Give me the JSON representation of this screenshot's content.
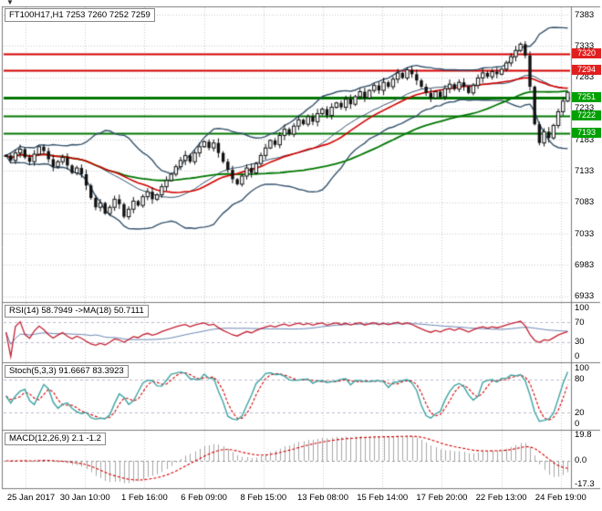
{
  "colors": {
    "background": "#ffffff",
    "grid": "#c8c8c8",
    "panel_border": "#7a7a7a",
    "candle": "#111111",
    "bollinger": "#35536d",
    "ma_fast": "#d40000",
    "ma_slow": "#007600",
    "badge_red": "#e01f1f",
    "badge_green": "#00a000",
    "rsi_line": "#c22033",
    "rsi_ma": "#6b86b5",
    "stoch_main": "#3da3a3",
    "stoch_signal": "#d40000",
    "macd_hist": "#a6a6a6",
    "macd_signal": "#d40000",
    "sub_level": "#b9b9cf",
    "axis_text": "#000000"
  },
  "icons": {
    "chart_menu": "▼"
  },
  "main_chart": {
    "header": "FT100H17,H1 7253 7260 7252 7259"
  },
  "panels": {
    "rsi": {
      "header": "RSI(14) 58.7949 ->MA(18) 50.7111",
      "axis_labels": [
        "100",
        "70",
        "30",
        "0"
      ]
    },
    "stoch": {
      "header": "Stoch(5,3,3) 91.6667 83.3923",
      "axis_labels": [
        "100",
        "80",
        "20",
        "0"
      ]
    },
    "macd": {
      "header": "MACD(12,26,9) 2.1 -1.2",
      "axis_labels": [
        "19.8",
        "0.0",
        "-17.3"
      ]
    }
  },
  "time_axis": {
    "labels": [
      "25 Jan 2017",
      "30 Jan 10:00",
      "1 Feb 16:00",
      "6 Feb 09:00",
      "8 Feb 15:00",
      "13 Feb 08:00",
      "15 Feb 14:00",
      "17 Feb 20:00",
      "22 Feb 13:00",
      "24 Feb 19:00"
    ]
  },
  "chart_data": {
    "type": "candlestick",
    "title": "FT100H17,H1",
    "symbol": "FT100H17",
    "timeframe": "H1",
    "quote": {
      "open": 7253,
      "high": 7260,
      "low": 7252,
      "close": 7259
    },
    "price_range": [
      6925,
      7395
    ],
    "price_ticks": [
      7383,
      7333,
      7283,
      7233,
      7183,
      7133,
      7083,
      7033,
      6983,
      6933
    ],
    "levels": [
      {
        "label": "7320",
        "price": 7320,
        "kind": "resistance",
        "line": "#d40000",
        "badge": "#e01f1f",
        "width": 2
      },
      {
        "label": "7294",
        "price": 7294,
        "kind": "resistance",
        "line": "#d40000",
        "badge": "#e01f1f",
        "width": 2
      },
      {
        "label": "7251",
        "price": 7251,
        "kind": "support",
        "line": "#007600",
        "badge": "#00a000",
        "width": 3
      },
      {
        "label": "7222",
        "price": 7222,
        "kind": "support",
        "line": "#007600",
        "badge": "#00a000",
        "width": 2
      },
      {
        "label": "7193",
        "price": 7193,
        "kind": "support",
        "line": "#007600",
        "badge": "#00a000",
        "width": 2
      }
    ],
    "closes": [
      7158,
      7150,
      7162,
      7168,
      7155,
      7148,
      7160,
      7172,
      7165,
      7152,
      7140,
      7148,
      7155,
      7142,
      7130,
      7138,
      7128,
      7110,
      7090,
      7075,
      7082,
      7065,
      7075,
      7088,
      7080,
      7060,
      7072,
      7085,
      7078,
      7092,
      7100,
      7088,
      7095,
      7108,
      7118,
      7128,
      7140,
      7150,
      7158,
      7148,
      7162,
      7172,
      7180,
      7170,
      7178,
      7162,
      7148,
      7135,
      7120,
      7112,
      7125,
      7138,
      7130,
      7145,
      7158,
      7170,
      7182,
      7175,
      7190,
      7200,
      7192,
      7205,
      7215,
      7208,
      7220,
      7212,
      7225,
      7232,
      7222,
      7235,
      7242,
      7235,
      7248,
      7240,
      7252,
      7260,
      7250,
      7262,
      7270,
      7262,
      7275,
      7268,
      7280,
      7290,
      7282,
      7295,
      7288,
      7278,
      7268,
      7258,
      7250,
      7260,
      7252,
      7265,
      7272,
      7264,
      7275,
      7268,
      7258,
      7270,
      7282,
      7290,
      7284,
      7292,
      7288,
      7296,
      7306,
      7316,
      7326,
      7336,
      7318,
      7268,
      7208,
      7178,
      7196,
      7186,
      7206,
      7228,
      7245,
      7259
    ],
    "indicators": {
      "bollinger": {
        "period": 20,
        "deviation": 2
      },
      "ma_fast_period": 24,
      "ma_slow_period": 55,
      "rsi": {
        "period": 14,
        "ma_period": 18,
        "value": 58.7949,
        "ma_value": 50.7111,
        "levels": [
          70,
          30
        ],
        "range": [
          0,
          100
        ]
      },
      "stochastic": {
        "k": 5,
        "slowing": 3,
        "d": 3,
        "value": 91.6667,
        "signal": 83.3923,
        "levels": [
          80,
          20
        ],
        "range": [
          0,
          100
        ]
      },
      "macd": {
        "fast": 12,
        "slow": 26,
        "signal_period": 9,
        "value": 2.1,
        "signal": -1.2,
        "axis": [
          19.8,
          0.0,
          -17.3
        ]
      }
    }
  }
}
